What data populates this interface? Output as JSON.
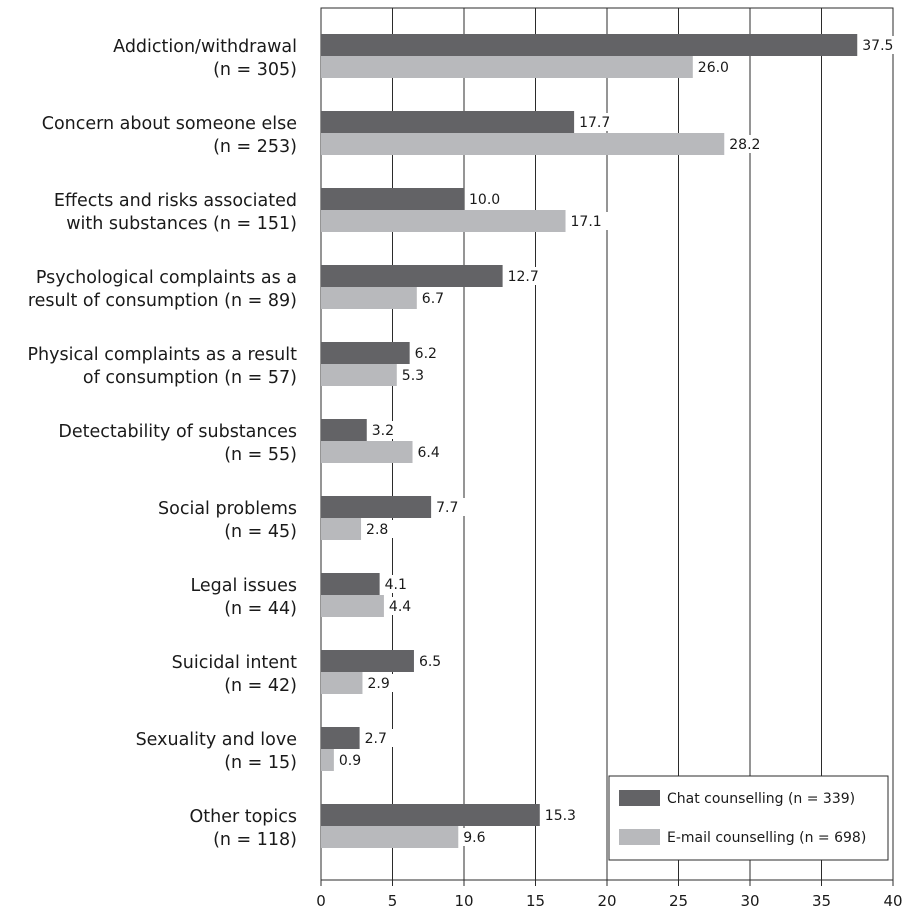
{
  "chart_data": {
    "type": "bar",
    "orientation": "horizontal",
    "title": "",
    "xlabel": "",
    "ylabel": "",
    "xlim": [
      0,
      40
    ],
    "x_ticks": [
      0,
      5,
      10,
      15,
      20,
      25,
      30,
      35,
      40
    ],
    "grid": "vertical",
    "legend_position": "bottom-right",
    "categories": [
      [
        "Addiction/withdrawal",
        "(n = 305)"
      ],
      [
        "Concern about someone else",
        "(n = 253)"
      ],
      [
        "Effects and risks associated",
        "with substances (n = 151)"
      ],
      [
        "Psychological complaints as a",
        "result of consumption (n = 89)"
      ],
      [
        "Physical complaints as a result",
        "of consumption (n = 57)"
      ],
      [
        "Detectability of substances",
        "(n = 55)"
      ],
      [
        "Social problems",
        "(n = 45)"
      ],
      [
        "Legal issues",
        "(n = 44)"
      ],
      [
        "Suicidal intent",
        "(n = 42)"
      ],
      [
        "Sexuality and love",
        "(n = 15)"
      ],
      [
        "Other topics",
        "(n = 118)"
      ]
    ],
    "series": [
      {
        "name": "Chat counselling (n = 339)",
        "color": "#636366",
        "values": [
          37.5,
          17.7,
          10.0,
          12.7,
          6.2,
          3.2,
          7.7,
          4.1,
          6.5,
          2.7,
          15.3
        ]
      },
      {
        "name": "E-mail counselling (n = 698)",
        "color": "#b8b9bc",
        "values": [
          26.0,
          28.2,
          17.1,
          6.7,
          5.3,
          6.4,
          2.8,
          4.4,
          2.9,
          0.9,
          9.6
        ]
      }
    ]
  }
}
